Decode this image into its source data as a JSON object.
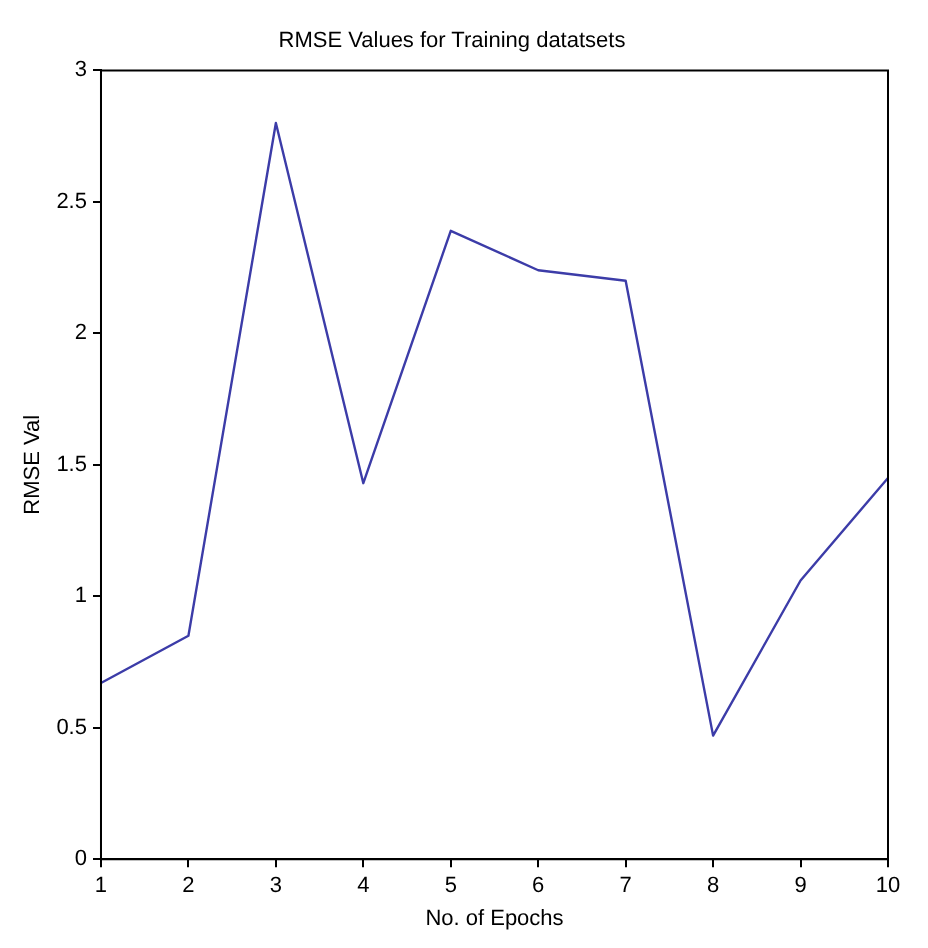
{
  "chart_data": {
    "type": "line",
    "title": "RMSE Values for Training datatsets",
    "xlabel": "No. of Epochs",
    "ylabel": "RMSE Val",
    "x": [
      1,
      2,
      3,
      4,
      5,
      6,
      7,
      8,
      9,
      10
    ],
    "series": [
      {
        "color": "#3c3ca8",
        "values": [
          0.67,
          0.85,
          2.8,
          1.43,
          2.39,
          2.24,
          2.2,
          0.47,
          1.06,
          1.45
        ]
      }
    ],
    "xlim": [
      1,
      10
    ],
    "xticks": [
      1,
      2,
      3,
      4,
      5,
      6,
      7,
      8,
      9,
      10
    ],
    "ylim": [
      0,
      3
    ],
    "yticks": [
      0,
      0.5,
      1,
      1.5,
      2,
      2.5,
      3
    ],
    "grid": false,
    "legend": false,
    "marker": "none",
    "line_style": "solid"
  }
}
